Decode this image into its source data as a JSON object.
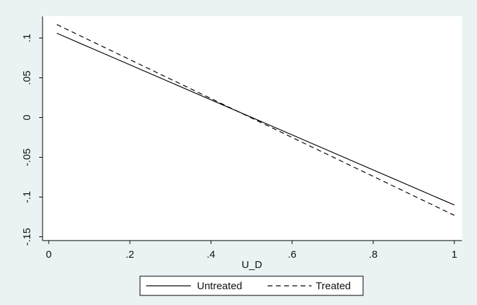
{
  "chart_data": {
    "type": "line",
    "title": "",
    "xlabel": "U_D",
    "ylabel": "",
    "xlim": [
      0,
      1
    ],
    "ylim": [
      -0.15,
      0.12
    ],
    "x_ticks": [
      0,
      0.2,
      0.4,
      0.6,
      0.8,
      1
    ],
    "x_tick_labels": [
      "0",
      ".2",
      ".4",
      ".6",
      ".8",
      "1"
    ],
    "y_ticks": [
      0.1,
      0.05,
      0,
      -0.05,
      -0.1,
      -0.15
    ],
    "y_tick_labels": [
      ".1",
      ".05",
      "0",
      "-.05",
      "-.1",
      "-.15"
    ],
    "grid": false,
    "legend_position": "bottom",
    "series": [
      {
        "name": "Untreated",
        "style": "solid",
        "color": "#000000",
        "x": [
          0.02,
          1.0
        ],
        "y": [
          0.106,
          -0.11
        ]
      },
      {
        "name": "Treated",
        "style": "dashed",
        "color": "#000000",
        "x": [
          0.02,
          1.0
        ],
        "y": [
          0.117,
          -0.123
        ]
      }
    ]
  }
}
